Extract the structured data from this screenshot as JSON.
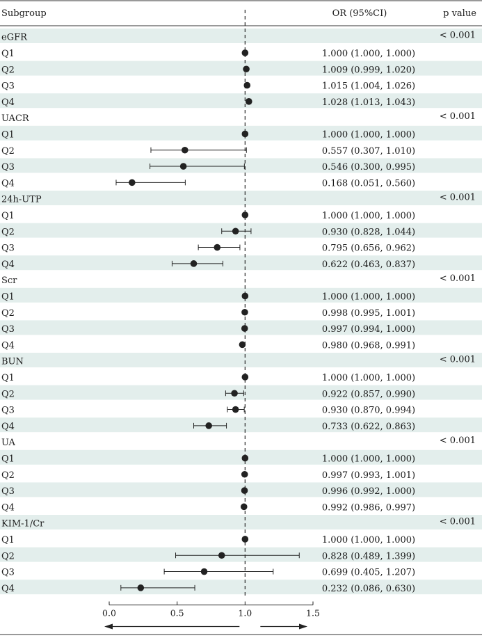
{
  "chart_data": {
    "type": "forest",
    "headers": {
      "subgroup": "Subgroup",
      "or": "OR (95%CI)",
      "p": "p value"
    },
    "reference_line": 1.0,
    "xlim": [
      0.0,
      1.5
    ],
    "xticks": [
      "0.0",
      "0.5",
      "1.0",
      "1.5"
    ],
    "colors": {
      "stripe": "#e3eeec",
      "marker": "#222222",
      "line": "#222222"
    },
    "groups": [
      {
        "name": "eGFR",
        "p": "< 0.001",
        "rows": [
          {
            "label": "Q1",
            "or": 1.0,
            "lo": 1.0,
            "hi": 1.0,
            "text": "1.000 (1.000, 1.000)"
          },
          {
            "label": "Q2",
            "or": 1.009,
            "lo": 0.999,
            "hi": 1.02,
            "text": "1.009 (0.999, 1.020)"
          },
          {
            "label": "Q3",
            "or": 1.015,
            "lo": 1.004,
            "hi": 1.026,
            "text": "1.015 (1.004, 1.026)"
          },
          {
            "label": "Q4",
            "or": 1.028,
            "lo": 1.013,
            "hi": 1.043,
            "text": "1.028 (1.013, 1.043)"
          }
        ]
      },
      {
        "name": "UACR",
        "p": "< 0.001",
        "rows": [
          {
            "label": "Q1",
            "or": 1.0,
            "lo": 1.0,
            "hi": 1.0,
            "text": "1.000 (1.000, 1.000)"
          },
          {
            "label": "Q2",
            "or": 0.557,
            "lo": 0.307,
            "hi": 1.01,
            "text": "0.557 (0.307, 1.010)"
          },
          {
            "label": "Q3",
            "or": 0.546,
            "lo": 0.3,
            "hi": 0.995,
            "text": "0.546 (0.300, 0.995)"
          },
          {
            "label": "Q4",
            "or": 0.168,
            "lo": 0.051,
            "hi": 0.56,
            "text": "0.168 (0.051, 0.560)"
          }
        ]
      },
      {
        "name": "24h-UTP",
        "p": "< 0.001",
        "rows": [
          {
            "label": "Q1",
            "or": 1.0,
            "lo": 1.0,
            "hi": 1.0,
            "text": "1.000 (1.000, 1.000)"
          },
          {
            "label": "Q2",
            "or": 0.93,
            "lo": 0.828,
            "hi": 1.044,
            "text": "0.930 (0.828, 1.044)"
          },
          {
            "label": "Q3",
            "or": 0.795,
            "lo": 0.656,
            "hi": 0.962,
            "text": "0.795 (0.656, 0.962)"
          },
          {
            "label": "Q4",
            "or": 0.622,
            "lo": 0.463,
            "hi": 0.837,
            "text": "0.622 (0.463, 0.837)"
          }
        ]
      },
      {
        "name": "Scr",
        "p": "< 0.001",
        "rows": [
          {
            "label": "Q1",
            "or": 1.0,
            "lo": 1.0,
            "hi": 1.0,
            "text": "1.000 (1.000, 1.000)"
          },
          {
            "label": "Q2",
            "or": 0.998,
            "lo": 0.995,
            "hi": 1.001,
            "text": "0.998 (0.995, 1.001)"
          },
          {
            "label": "Q3",
            "or": 0.997,
            "lo": 0.994,
            "hi": 1.0,
            "text": "0.997 (0.994, 1.000)"
          },
          {
            "label": "Q4",
            "or": 0.98,
            "lo": 0.968,
            "hi": 0.991,
            "text": "0.980 (0.968, 0.991)"
          }
        ]
      },
      {
        "name": "BUN",
        "p": "< 0.001",
        "rows": [
          {
            "label": "Q1",
            "or": 1.0,
            "lo": 1.0,
            "hi": 1.0,
            "text": "1.000 (1.000, 1.000)"
          },
          {
            "label": "Q2",
            "or": 0.922,
            "lo": 0.857,
            "hi": 0.99,
            "text": "0.922 (0.857, 0.990)"
          },
          {
            "label": "Q3",
            "or": 0.93,
            "lo": 0.87,
            "hi": 0.994,
            "text": "0.930 (0.870, 0.994)"
          },
          {
            "label": "Q4",
            "or": 0.733,
            "lo": 0.622,
            "hi": 0.863,
            "text": "0.733 (0.622, 0.863)"
          }
        ]
      },
      {
        "name": "UA",
        "p": "< 0.001",
        "rows": [
          {
            "label": "Q1",
            "or": 1.0,
            "lo": 1.0,
            "hi": 1.0,
            "text": "1.000 (1.000, 1.000)"
          },
          {
            "label": "Q2",
            "or": 0.997,
            "lo": 0.993,
            "hi": 1.001,
            "text": "0.997 (0.993, 1.001)"
          },
          {
            "label": "Q3",
            "or": 0.996,
            "lo": 0.992,
            "hi": 1.0,
            "text": "0.996 (0.992, 1.000)"
          },
          {
            "label": "Q4",
            "or": 0.992,
            "lo": 0.986,
            "hi": 0.997,
            "text": "0.992 (0.986, 0.997)"
          }
        ]
      },
      {
        "name": "KIM-1/Cr",
        "p": "< 0.001",
        "rows": [
          {
            "label": "Q1",
            "or": 1.0,
            "lo": 1.0,
            "hi": 1.0,
            "text": "1.000 (1.000, 1.000)"
          },
          {
            "label": "Q2",
            "or": 0.828,
            "lo": 0.489,
            "hi": 1.399,
            "text": "0.828 (0.489, 1.399)"
          },
          {
            "label": "Q3",
            "or": 0.699,
            "lo": 0.405,
            "hi": 1.207,
            "text": "0.699 (0.405, 1.207)"
          },
          {
            "label": "Q4",
            "or": 0.232,
            "lo": 0.086,
            "hi": 0.63,
            "text": "0.232 (0.086, 0.630)"
          }
        ]
      }
    ]
  }
}
